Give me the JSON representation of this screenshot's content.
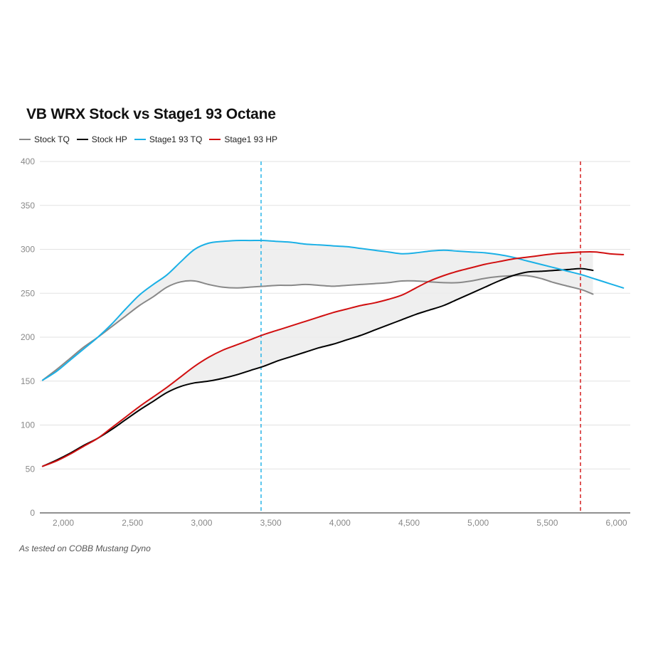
{
  "chart_data": {
    "type": "line",
    "title": "VB WRX Stock vs Stage1 93 Octane",
    "source_note": "As tested on COBB Mustang Dyno",
    "xlim": [
      1830,
      6100
    ],
    "ylim": [
      0,
      400
    ],
    "x_ticks": [
      2000,
      2500,
      3000,
      3500,
      4000,
      4500,
      5000,
      5500,
      6000
    ],
    "x_tick_labels": [
      "2,000",
      "2,500",
      "3,000",
      "3,500",
      "4,000",
      "4,500",
      "5,000",
      "5,500",
      "6,000"
    ],
    "y_ticks": [
      0,
      50,
      100,
      150,
      200,
      250,
      300,
      350,
      400
    ],
    "y_tick_labels": [
      "0",
      "50",
      "100",
      "150",
      "200",
      "250",
      "300",
      "350",
      "400"
    ],
    "grid": "horizontal",
    "legend_position": "top-left",
    "vertical_markers": [
      {
        "x": 3430,
        "color": "#1ab0e6"
      },
      {
        "x": 5740,
        "color": "#d10f10"
      }
    ],
    "shaded_gaps": [
      {
        "upper": "Stage1 93 TQ",
        "lower": "Stock TQ"
      },
      {
        "upper": "Stage1 93 HP",
        "lower": "Stock HP"
      }
    ],
    "series": [
      {
        "name": "Stock TQ",
        "color": "#888888",
        "x": [
          1850,
          1950,
          2050,
          2150,
          2250,
          2350,
          2450,
          2550,
          2650,
          2750,
          2850,
          2950,
          3050,
          3150,
          3250,
          3350,
          3450,
          3550,
          3650,
          3750,
          3850,
          3950,
          4050,
          4150,
          4250,
          4350,
          4450,
          4550,
          4650,
          4750,
          4850,
          4950,
          5050,
          5150,
          5250,
          5350,
          5450,
          5550,
          5650,
          5750,
          5830
        ],
        "y": [
          151,
          163,
          176,
          189,
          200,
          212,
          224,
          236,
          246,
          257,
          263,
          264,
          260,
          257,
          256,
          257,
          258,
          259,
          259,
          260,
          259,
          258,
          259,
          260,
          261,
          262,
          264,
          264,
          263,
          262,
          262,
          264,
          267,
          269,
          270,
          270,
          267,
          262,
          258,
          254,
          249
        ]
      },
      {
        "name": "Stock HP",
        "color": "#000000",
        "x": [
          1850,
          1950,
          2050,
          2150,
          2250,
          2350,
          2450,
          2550,
          2650,
          2750,
          2850,
          2950,
          3050,
          3150,
          3250,
          3350,
          3450,
          3550,
          3650,
          3750,
          3850,
          3950,
          4050,
          4150,
          4250,
          4350,
          4450,
          4550,
          4650,
          4750,
          4850,
          4950,
          5050,
          5150,
          5250,
          5350,
          5450,
          5550,
          5650,
          5750,
          5830
        ],
        "y": [
          53,
          60,
          68,
          77,
          85,
          95,
          106,
          117,
          127,
          137,
          144,
          148,
          150,
          153,
          157,
          162,
          167,
          173,
          178,
          183,
          188,
          192,
          197,
          202,
          208,
          214,
          220,
          226,
          231,
          236,
          243,
          250,
          257,
          264,
          270,
          274,
          275,
          276,
          277,
          278,
          276
        ]
      },
      {
        "name": "Stage1 93 TQ",
        "color": "#1ab0e6",
        "x": [
          1850,
          1950,
          2050,
          2150,
          2250,
          2350,
          2450,
          2550,
          2650,
          2750,
          2850,
          2950,
          3050,
          3150,
          3250,
          3350,
          3450,
          3550,
          3650,
          3750,
          3850,
          3950,
          4050,
          4150,
          4250,
          4350,
          4450,
          4550,
          4650,
          4750,
          4850,
          4950,
          5050,
          5150,
          5250,
          5350,
          5450,
          5550,
          5650,
          5750,
          5850,
          5950,
          6050
        ],
        "y": [
          151,
          161,
          174,
          187,
          200,
          215,
          232,
          248,
          260,
          271,
          286,
          300,
          307,
          309,
          310,
          310,
          310,
          309,
          308,
          306,
          305,
          304,
          303,
          301,
          299,
          297,
          295,
          296,
          298,
          299,
          298,
          297,
          296,
          294,
          291,
          287,
          283,
          279,
          275,
          271,
          266,
          261,
          256
        ]
      },
      {
        "name": "Stage1 93 HP",
        "color": "#d10f10",
        "x": [
          1850,
          1950,
          2050,
          2150,
          2250,
          2350,
          2450,
          2550,
          2650,
          2750,
          2850,
          2950,
          3050,
          3150,
          3250,
          3350,
          3450,
          3550,
          3650,
          3750,
          3850,
          3950,
          4050,
          4150,
          4250,
          4350,
          4450,
          4550,
          4650,
          4750,
          4850,
          4950,
          5050,
          5150,
          5250,
          5350,
          5450,
          5550,
          5650,
          5750,
          5850,
          5950,
          6050
        ],
        "y": [
          53,
          59,
          67,
          76,
          85,
          97,
          109,
          121,
          132,
          143,
          155,
          167,
          177,
          185,
          191,
          197,
          203,
          208,
          213,
          218,
          223,
          228,
          232,
          236,
          239,
          243,
          248,
          256,
          264,
          270,
          275,
          279,
          283,
          286,
          289,
          291,
          293,
          295,
          296,
          297,
          297,
          295,
          294
        ]
      }
    ]
  }
}
